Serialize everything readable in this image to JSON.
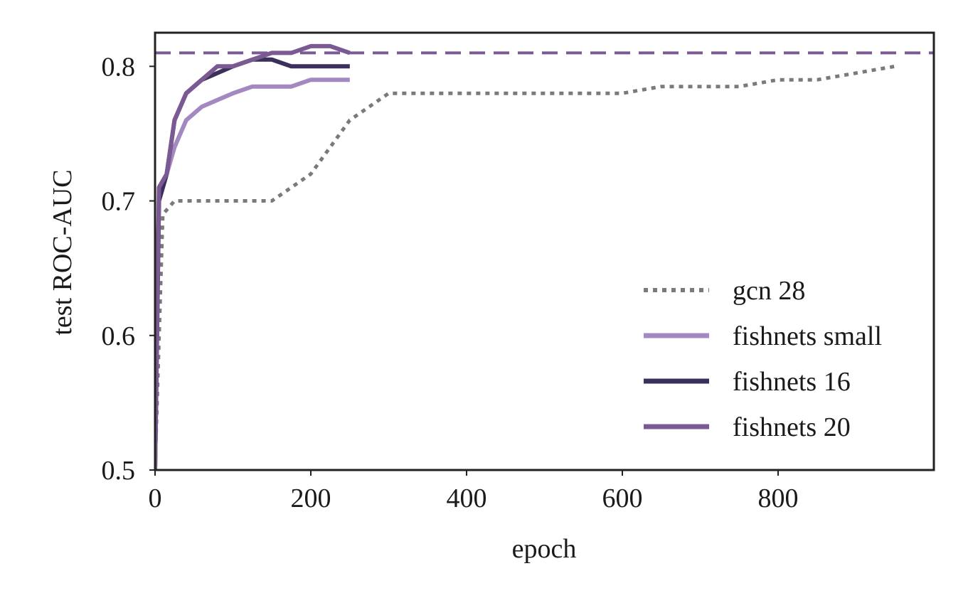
{
  "chart_data": {
    "type": "line",
    "title": "",
    "xlabel": "epoch",
    "ylabel": "test ROC-AUC",
    "xlim": [
      0,
      1000
    ],
    "ylim": [
      0.5,
      0.825
    ],
    "xticks": [
      0,
      200,
      400,
      600,
      800
    ],
    "xtick_labels": [
      "0",
      "200",
      "400",
      "600",
      "800"
    ],
    "yticks": [
      0.5,
      0.6,
      0.7,
      0.8
    ],
    "ytick_labels": [
      "0.5",
      "0.6",
      "0.7",
      "0.8"
    ],
    "grid": false,
    "legend_position": "lower-right",
    "reference_line": {
      "y": 0.81,
      "style": "dashed",
      "color": "#7b5a93"
    },
    "series": [
      {
        "name": "gcn 28",
        "style": "dotted",
        "color": "#7a7a7a",
        "x": [
          0,
          10,
          25,
          50,
          75,
          100,
          125,
          150,
          175,
          200,
          225,
          250,
          275,
          300,
          350,
          400,
          450,
          500,
          550,
          600,
          650,
          700,
          750,
          800,
          850,
          900,
          950
        ],
        "y": [
          0.5,
          0.69,
          0.7,
          0.7,
          0.7,
          0.7,
          0.7,
          0.7,
          0.71,
          0.72,
          0.74,
          0.76,
          0.77,
          0.78,
          0.78,
          0.78,
          0.78,
          0.78,
          0.78,
          0.78,
          0.785,
          0.785,
          0.785,
          0.79,
          0.79,
          0.795,
          0.8
        ]
      },
      {
        "name": "fishnets small",
        "style": "solid",
        "color": "#a488c1",
        "x": [
          0,
          5,
          15,
          25,
          40,
          60,
          80,
          100,
          125,
          150,
          175,
          200,
          225,
          250
        ],
        "y": [
          0.5,
          0.7,
          0.72,
          0.74,
          0.76,
          0.77,
          0.775,
          0.78,
          0.785,
          0.785,
          0.785,
          0.79,
          0.79,
          0.79
        ]
      },
      {
        "name": "fishnets 16",
        "style": "solid",
        "color": "#3b2f5b",
        "x": [
          0,
          5,
          15,
          25,
          40,
          60,
          80,
          100,
          125,
          150,
          175,
          200,
          225,
          250
        ],
        "y": [
          0.5,
          0.7,
          0.72,
          0.76,
          0.78,
          0.79,
          0.795,
          0.8,
          0.805,
          0.805,
          0.8,
          0.8,
          0.8,
          0.8
        ]
      },
      {
        "name": "fishnets 20",
        "style": "solid",
        "color": "#7b5a93",
        "x": [
          0,
          5,
          15,
          25,
          40,
          60,
          80,
          100,
          125,
          150,
          175,
          200,
          225,
          250
        ],
        "y": [
          0.5,
          0.71,
          0.72,
          0.76,
          0.78,
          0.79,
          0.8,
          0.8,
          0.805,
          0.81,
          0.81,
          0.815,
          0.815,
          0.81
        ]
      }
    ]
  }
}
